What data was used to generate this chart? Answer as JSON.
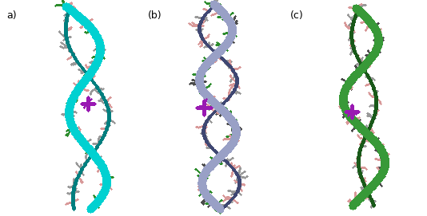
{
  "figsize": [
    5.34,
    2.71
  ],
  "dpi": 100,
  "background_color": "#ffffff",
  "labels": [
    "a)",
    "(b)",
    "(c)"
  ],
  "label_fontsize": 9,
  "image_b64": ""
}
